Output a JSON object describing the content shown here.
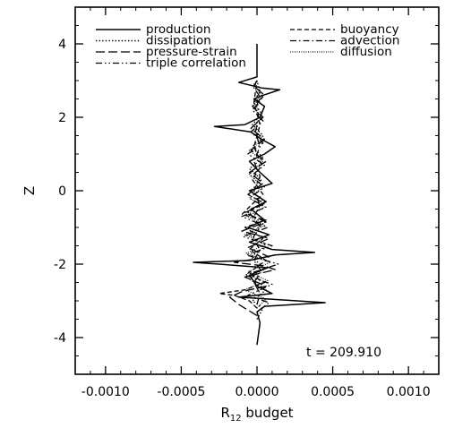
{
  "chart_data": {
    "type": "line",
    "title": "",
    "xlabel": "R",
    "xlabel_subscript": "12",
    "xlabel_suffix": " budget",
    "ylabel": "Z",
    "xlim": [
      -0.0012,
      0.0012
    ],
    "ylim": [
      -5,
      5
    ],
    "x_ticks": [
      -0.001,
      -0.0005,
      0,
      0.0005,
      0.001
    ],
    "x_tick_labels": [
      "-0.0010",
      "-0.0005",
      "0.0000",
      "0.0005",
      "0.0010"
    ],
    "y_ticks": [
      -4,
      -2,
      0,
      2,
      4
    ],
    "y_tick_labels": [
      "-4",
      "-2",
      "0",
      "2",
      "4"
    ],
    "grid": false,
    "legend_placement": "top",
    "annotation": "t = 209.910",
    "series": [
      {
        "name": "production",
        "style": "solid",
        "color": "#000000",
        "points": [
          [
            0,
            -4.2
          ],
          [
            2e-05,
            -3.6
          ],
          [
            0,
            -3.3
          ],
          [
            5e-05,
            -3.15
          ],
          [
            0.00045,
            -3.05
          ],
          [
            8e-05,
            -2.95
          ],
          [
            -0.00012,
            -2.9
          ],
          [
            0.0001,
            -2.8
          ],
          [
            0,
            -2.6
          ],
          [
            -5e-05,
            -2.3
          ],
          [
            7e-05,
            -2.1
          ],
          [
            -0.00025,
            -2.0
          ],
          [
            -0.00042,
            -1.95
          ],
          [
            -5e-05,
            -1.9
          ],
          [
            0.00012,
            -1.75
          ],
          [
            0.00038,
            -1.68
          ],
          [
            0.0001,
            -1.6
          ],
          [
            -5e-05,
            -1.4
          ],
          [
            8e-05,
            -1.2
          ],
          [
            -6e-05,
            -1.0
          ],
          [
            5e-05,
            -0.8
          ],
          [
            -4e-05,
            -0.5
          ],
          [
            6e-05,
            -0.3
          ],
          [
            -5e-05,
            0.0
          ],
          [
            0.0001,
            0.2
          ],
          [
            2e-05,
            0.5
          ],
          [
            -5e-05,
            0.8
          ],
          [
            5e-05,
            1.0
          ],
          [
            0.00012,
            1.2
          ],
          [
            3e-05,
            1.4
          ],
          [
            -4e-05,
            1.6
          ],
          [
            -0.00028,
            1.75
          ],
          [
            -8e-05,
            1.8
          ],
          [
            2e-05,
            2.0
          ],
          [
            5e-05,
            2.3
          ],
          [
            -2e-05,
            2.5
          ],
          [
            4e-05,
            2.6
          ],
          [
            0.00015,
            2.75
          ],
          [
            3e-05,
            2.8
          ],
          [
            -0.00012,
            2.95
          ],
          [
            0,
            3.1
          ],
          [
            0,
            4.0
          ]
        ]
      },
      {
        "name": "dissipation",
        "style": "dotted",
        "color": "#000000",
        "points": [
          [
            0,
            -3.5
          ],
          [
            4e-05,
            -3.2
          ],
          [
            -3e-05,
            -3.0
          ],
          [
            6e-05,
            -2.7
          ],
          [
            -5e-05,
            -2.4
          ],
          [
            5e-05,
            -2.1
          ],
          [
            -4e-05,
            -1.8
          ],
          [
            6e-05,
            -1.5
          ],
          [
            -5e-05,
            -1.2
          ],
          [
            4e-05,
            -0.9
          ],
          [
            -6e-05,
            -0.6
          ],
          [
            5e-05,
            -0.3
          ],
          [
            -4e-05,
            0.0
          ],
          [
            3e-05,
            0.3
          ],
          [
            -5e-05,
            0.6
          ],
          [
            4e-05,
            0.9
          ],
          [
            -3e-05,
            1.2
          ],
          [
            4e-05,
            1.5
          ],
          [
            -3e-05,
            1.8
          ],
          [
            3e-05,
            2.1
          ],
          [
            -2e-05,
            2.4
          ],
          [
            2e-05,
            2.7
          ],
          [
            0,
            3.0
          ]
        ]
      },
      {
        "name": "pressure-strain",
        "style": "longdash",
        "color": "#000000",
        "points": [
          [
            0,
            -3.4
          ],
          [
            -0.00012,
            -3.1
          ],
          [
            -0.00018,
            -2.9
          ],
          [
            -0.0001,
            -2.75
          ],
          [
            6e-05,
            -2.6
          ],
          [
            -8e-05,
            -2.35
          ],
          [
            0.00012,
            -2.15
          ],
          [
            5e-05,
            -2.05
          ],
          [
            -0.00015,
            -1.95
          ],
          [
            8e-05,
            -1.8
          ],
          [
            -6e-05,
            -1.55
          ],
          [
            8e-05,
            -1.3
          ],
          [
            -0.0001,
            -1.1
          ],
          [
            6e-05,
            -0.85
          ],
          [
            -8e-05,
            -0.6
          ],
          [
            5e-05,
            -0.35
          ],
          [
            -6e-05,
            -0.1
          ],
          [
            4e-05,
            0.2
          ],
          [
            -5e-05,
            0.5
          ],
          [
            6e-05,
            0.8
          ],
          [
            -4e-05,
            1.1
          ],
          [
            5e-05,
            1.4
          ],
          [
            -4e-05,
            1.7
          ],
          [
            4e-05,
            2.0
          ],
          [
            -3e-05,
            2.3
          ],
          [
            5e-05,
            2.6
          ],
          [
            -2e-05,
            2.85
          ],
          [
            0,
            3.0
          ]
        ]
      },
      {
        "name": "triple correlation",
        "style": "dashdotdot",
        "color": "#000000",
        "points": [
          [
            0,
            -3.3
          ],
          [
            8e-05,
            -3.05
          ],
          [
            -6e-05,
            -2.85
          ],
          [
            0.0001,
            -2.55
          ],
          [
            -8e-05,
            -2.3
          ],
          [
            0.00014,
            -2.0
          ],
          [
            -7e-05,
            -1.75
          ],
          [
            0.0001,
            -1.5
          ],
          [
            -9e-05,
            -1.25
          ],
          [
            7e-05,
            -1.0
          ],
          [
            -0.0001,
            -0.7
          ],
          [
            6e-05,
            -0.45
          ],
          [
            -5e-05,
            -0.2
          ],
          [
            5e-05,
            0.1
          ],
          [
            -4e-05,
            0.4
          ],
          [
            5e-05,
            0.7
          ],
          [
            -6e-05,
            1.0
          ],
          [
            4e-05,
            1.3
          ],
          [
            -4e-05,
            1.6
          ],
          [
            4e-05,
            1.9
          ],
          [
            -3e-05,
            2.2
          ],
          [
            3e-05,
            2.5
          ],
          [
            -2e-05,
            2.8
          ],
          [
            0,
            3.0
          ]
        ]
      },
      {
        "name": "buoyancy",
        "style": "dash",
        "color": "#000000",
        "points": [
          [
            0,
            -3.2
          ],
          [
            -5e-05,
            -3.0
          ],
          [
            -0.00015,
            -2.85
          ],
          [
            -0.00025,
            -2.8
          ],
          [
            -8e-05,
            -2.7
          ],
          [
            5e-05,
            -2.5
          ],
          [
            -6e-05,
            -2.25
          ],
          [
            6e-05,
            -1.9
          ],
          [
            -5e-05,
            -1.6
          ],
          [
            4e-05,
            -1.3
          ],
          [
            -8e-05,
            -1.0
          ],
          [
            6e-05,
            -0.8
          ],
          [
            -0.0001,
            -0.65
          ],
          [
            -4e-05,
            -0.4
          ],
          [
            4e-05,
            -0.1
          ],
          [
            -3e-05,
            0.3
          ],
          [
            3e-05,
            0.7
          ],
          [
            -2e-05,
            1.2
          ],
          [
            2e-05,
            1.8
          ],
          [
            -2e-05,
            2.4
          ],
          [
            0,
            3.0
          ]
        ]
      },
      {
        "name": "advection",
        "style": "dashdot",
        "color": "#000000",
        "points": [
          [
            0,
            -3.1
          ],
          [
            2e-05,
            -2.8
          ],
          [
            -2e-05,
            -2.5
          ],
          [
            3e-05,
            -2.2
          ],
          [
            -2e-05,
            -1.9
          ],
          [
            2e-05,
            -1.6
          ],
          [
            -3e-05,
            -1.3
          ],
          [
            2e-05,
            -1.0
          ],
          [
            -2e-05,
            -0.7
          ],
          [
            2e-05,
            -0.4
          ],
          [
            -2e-05,
            0.0
          ],
          [
            2e-05,
            0.4
          ],
          [
            -2e-05,
            0.8
          ],
          [
            2e-05,
            1.2
          ],
          [
            -1e-05,
            1.6
          ],
          [
            1e-05,
            2.0
          ],
          [
            0,
            2.6
          ]
        ]
      },
      {
        "name": "diffusion",
        "style": "finedot",
        "color": "#000000",
        "points": [
          [
            0,
            -3.2
          ],
          [
            6e-05,
            -2.95
          ],
          [
            -8e-05,
            -2.7
          ],
          [
            7e-05,
            -2.45
          ],
          [
            -6e-05,
            -2.2
          ],
          [
            9e-05,
            -1.95
          ],
          [
            -7e-05,
            -1.7
          ],
          [
            6e-05,
            -1.45
          ],
          [
            -8e-05,
            -1.2
          ],
          [
            5e-05,
            -0.95
          ],
          [
            -6e-05,
            -0.7
          ],
          [
            5e-05,
            -0.45
          ],
          [
            -5e-05,
            -0.2
          ],
          [
            4e-05,
            0.1
          ],
          [
            -5e-05,
            0.45
          ],
          [
            4e-05,
            0.8
          ],
          [
            -5e-05,
            1.1
          ],
          [
            4e-05,
            1.4
          ],
          [
            -4e-05,
            1.7
          ],
          [
            3e-05,
            2.0
          ],
          [
            -3e-05,
            2.3
          ],
          [
            3e-05,
            2.6
          ],
          [
            -2e-05,
            2.9
          ],
          [
            0,
            3.0
          ]
        ]
      }
    ]
  }
}
